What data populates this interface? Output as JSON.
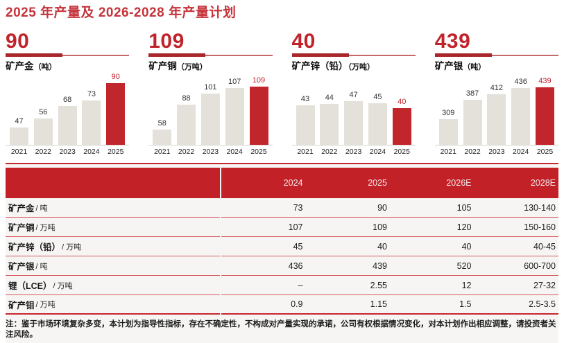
{
  "page": {
    "title": "2025 年产量及 2026-2028 年产量计划",
    "note": "注：鉴于市场环境复杂多变，本计划为指导性指标，存在不确定性，不构成对产量实现的承诺，公司有权根据情况变化，对本计划作出相应调整，请投资者关注风险。"
  },
  "colors": {
    "primary_red": "#c32128",
    "bar_red": "#c2262d",
    "bar_gray": "#e4e1db",
    "separator_red": "#d4565c",
    "headline_red": "#c0232b",
    "section_bg": "#f6f5f3"
  },
  "chart_data": [
    {
      "type": "bar",
      "headline": "90",
      "title": "矿产金",
      "unit": "（吨）",
      "categories": [
        "2021",
        "2022",
        "2023",
        "2024",
        "2025"
      ],
      "values": [
        47,
        56,
        68,
        73,
        90
      ],
      "highlight_category": "2025",
      "legend": "none",
      "grid": "off"
    },
    {
      "type": "bar",
      "headline": "109",
      "title": "矿产铜",
      "unit": "（万吨）",
      "categories": [
        "2021",
        "2022",
        "2023",
        "2024",
        "2025"
      ],
      "values": [
        58,
        88,
        101,
        107,
        109
      ],
      "highlight_category": "2025",
      "legend": "none",
      "grid": "off"
    },
    {
      "type": "bar",
      "headline": "40",
      "title": "矿产锌（铅）",
      "unit": "（万吨）",
      "categories": [
        "2021",
        "2022",
        "2023",
        "2024",
        "2025"
      ],
      "values": [
        43,
        44,
        47,
        45,
        40
      ],
      "highlight_category": "2025",
      "legend": "none",
      "grid": "off"
    },
    {
      "type": "bar",
      "headline": "439",
      "title": "矿产银",
      "unit": "（吨）",
      "categories": [
        "2021",
        "2022",
        "2023",
        "2024",
        "2025"
      ],
      "values": [
        309,
        387,
        412,
        436,
        439
      ],
      "highlight_category": "2025",
      "legend": "none",
      "grid": "off"
    },
    {
      "type": "table",
      "columns": [
        "2024",
        "2025",
        "2026E",
        "2028E"
      ],
      "rows": [
        {
          "label": "矿产金",
          "unit": "/ 吨",
          "values": [
            "73",
            "90",
            "105",
            "130-140"
          ]
        },
        {
          "label": "矿产铜",
          "unit": "/ 万吨",
          "values": [
            "107",
            "109",
            "120",
            "150-160"
          ]
        },
        {
          "label": "矿产锌（铅）",
          "unit": "/ 万吨",
          "values": [
            "45",
            "40",
            "40",
            "40-45"
          ]
        },
        {
          "label": "矿产银",
          "unit": "/ 吨",
          "values": [
            "436",
            "439",
            "520",
            "600-700"
          ]
        },
        {
          "label": "锂（LCE）",
          "unit": "/ 万吨",
          "values": [
            "–",
            "2.55",
            "12",
            "27-32"
          ]
        },
        {
          "label": "矿产钼",
          "unit": "/ 万吨",
          "values": [
            "0.9",
            "1.15",
            "1.5",
            "2.5-3.5"
          ]
        }
      ]
    }
  ]
}
